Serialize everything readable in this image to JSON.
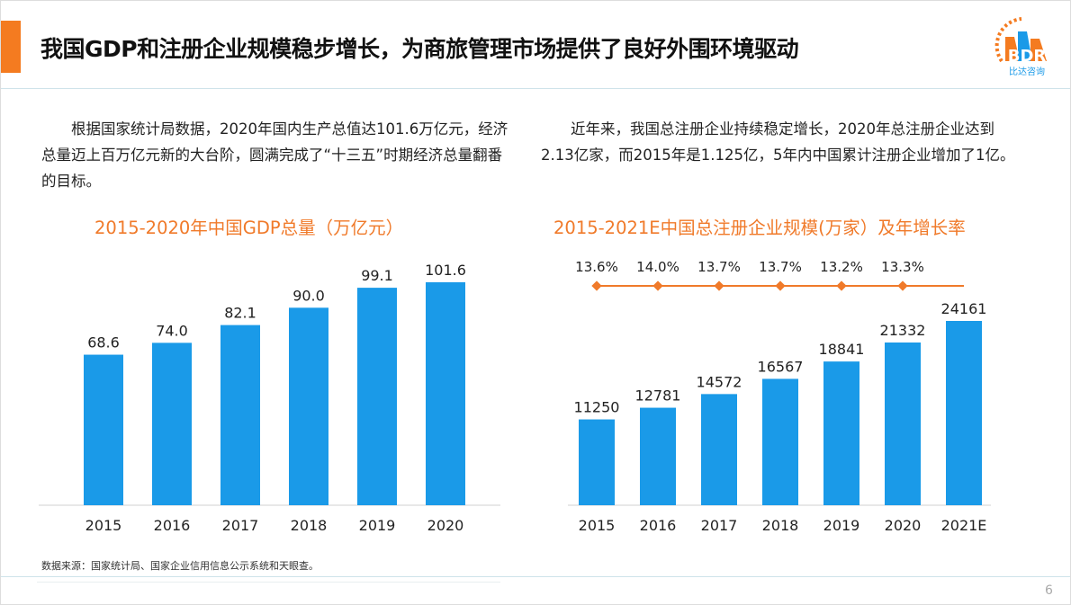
{
  "header": {
    "title": "我国GDP和注册企业规模稳步增长，为商旅管理市场提供了良好外围环境驱动",
    "logo_text": "BDR",
    "logo_subtext": "比达咨询"
  },
  "left_text": "根据国家统计局数据，2020年国内生产总值达101.6万亿元，经济总量迈上百万亿元新的大台阶，圆满完成了“十三五”时期经济总量翻番的目标。",
  "right_text": "近年来，我国总注册企业持续稳定增长，2020年总注册企业达到2.13亿家，而2015年是1.125亿，5年内中国累计注册企业增加了1亿。",
  "source": "数据来源：国家统计局、国家企业信用信息公示系统和天眼查。",
  "page_number": "6",
  "colors": {
    "accent": "#f47b20",
    "bar": "#1a9ae8",
    "line": "#f07a2a",
    "title": "#f07a2a"
  },
  "chart_data": [
    {
      "type": "bar",
      "title": "2015-2020年中国GDP总量（万亿元）",
      "categories": [
        "2015",
        "2016",
        "2017",
        "2018",
        "2019",
        "2020"
      ],
      "values": [
        68.6,
        74.0,
        82.1,
        90.0,
        99.1,
        101.6
      ],
      "labels": [
        "68.6",
        "74.0",
        "82.1",
        "90.0",
        "99.1",
        "101.6"
      ],
      "ylim": [
        0,
        101.6
      ],
      "grid": false
    },
    {
      "type": "bar",
      "title": "2015-2021E中国总注册企业规模(万家）及年增长率",
      "categories": [
        "2015",
        "2016",
        "2017",
        "2018",
        "2019",
        "2020",
        "2021E"
      ],
      "values": [
        11250,
        12781,
        14572,
        16567,
        18841,
        21332,
        24161
      ],
      "line_series": {
        "type": "line",
        "values": [
          13.6,
          14.0,
          13.7,
          13.7,
          13.2,
          13.3
        ],
        "labels": [
          "13.6%",
          "14.0%",
          "13.7%",
          "13.7%",
          "13.2%",
          "13.3%"
        ]
      },
      "ylim": [
        0,
        24161
      ],
      "grid": false
    }
  ]
}
